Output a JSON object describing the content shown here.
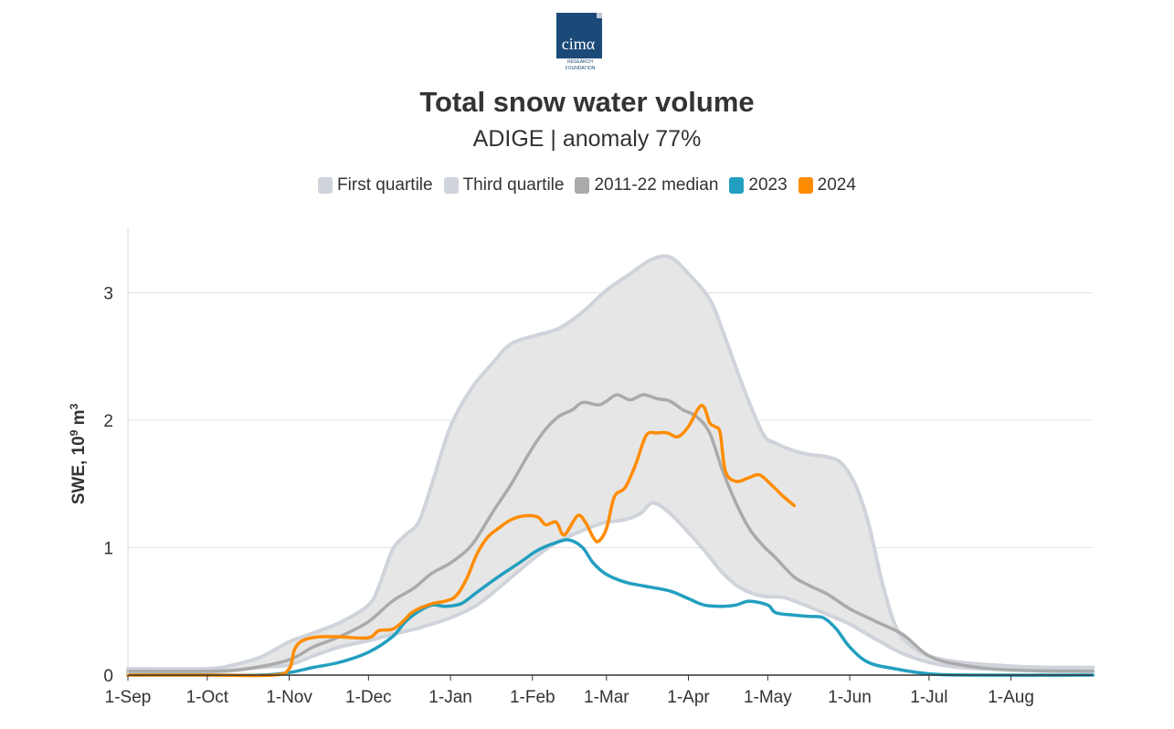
{
  "logo": {
    "text": "cimα",
    "subtext1": "RESEARCH",
    "subtext2": "FOUNDATION"
  },
  "chart_data": {
    "type": "line",
    "title": "Total snow water volume",
    "subtitle": "ADIGE | anomaly 77%",
    "ylabel": "SWE, 10",
    "ylabel_sup": "9",
    "ylabel_unit": " m",
    "ylabel_unit_sup": "3",
    "xlabel": "",
    "ylim": [
      0,
      3.5
    ],
    "xlim": [
      0,
      365
    ],
    "grid": true,
    "legend_position": "top-center",
    "yticks": [
      {
        "value": 0,
        "label": "0"
      },
      {
        "value": 1,
        "label": "1"
      },
      {
        "value": 2,
        "label": "2"
      },
      {
        "value": 3,
        "label": "3"
      }
    ],
    "xticks": [
      {
        "day": 0,
        "label": "1-Sep"
      },
      {
        "day": 30,
        "label": "1-Oct"
      },
      {
        "day": 61,
        "label": "1-Nov"
      },
      {
        "day": 91,
        "label": "1-Dec"
      },
      {
        "day": 122,
        "label": "1-Jan"
      },
      {
        "day": 153,
        "label": "1-Feb"
      },
      {
        "day": 181,
        "label": "1-Mar"
      },
      {
        "day": 212,
        "label": "1-Apr"
      },
      {
        "day": 242,
        "label": "1-May"
      },
      {
        "day": 273,
        "label": "1-Jun"
      },
      {
        "day": 303,
        "label": "1-Jul"
      },
      {
        "day": 334,
        "label": "1-Aug"
      }
    ],
    "legend": [
      {
        "label": "First quartile",
        "color": "#cfd3da"
      },
      {
        "label": "Third quartile",
        "color": "#cfd3da"
      },
      {
        "label": "2011-22 median",
        "color": "#aaaaaa"
      },
      {
        "label": "2023",
        "color": "#229fc0"
      },
      {
        "label": "2024",
        "color": "#ff8c00"
      }
    ],
    "series": [
      {
        "name": "First quartile",
        "color": "#cfd3da",
        "points": [
          [
            0,
            0.02
          ],
          [
            30,
            0.02
          ],
          [
            50,
            0.06
          ],
          [
            61,
            0.08
          ],
          [
            70,
            0.15
          ],
          [
            80,
            0.22
          ],
          [
            91,
            0.27
          ],
          [
            100,
            0.32
          ],
          [
            110,
            0.37
          ],
          [
            122,
            0.45
          ],
          [
            132,
            0.55
          ],
          [
            140,
            0.68
          ],
          [
            148,
            0.82
          ],
          [
            155,
            0.94
          ],
          [
            162,
            1.04
          ],
          [
            168,
            1.1
          ],
          [
            175,
            1.16
          ],
          [
            181,
            1.2
          ],
          [
            188,
            1.22
          ],
          [
            194,
            1.27
          ],
          [
            198,
            1.35
          ],
          [
            202,
            1.32
          ],
          [
            206,
            1.25
          ],
          [
            212,
            1.12
          ],
          [
            218,
            0.98
          ],
          [
            225,
            0.8
          ],
          [
            232,
            0.68
          ],
          [
            240,
            0.62
          ],
          [
            248,
            0.61
          ],
          [
            256,
            0.55
          ],
          [
            264,
            0.48
          ],
          [
            273,
            0.4
          ],
          [
            283,
            0.28
          ],
          [
            293,
            0.17
          ],
          [
            303,
            0.1
          ],
          [
            315,
            0.06
          ],
          [
            334,
            0.04
          ],
          [
            350,
            0.03
          ],
          [
            365,
            0.03
          ]
        ]
      },
      {
        "name": "Third quartile",
        "color": "#cfd3da",
        "points": [
          [
            0,
            0.05
          ],
          [
            30,
            0.05
          ],
          [
            40,
            0.08
          ],
          [
            50,
            0.14
          ],
          [
            61,
            0.26
          ],
          [
            70,
            0.33
          ],
          [
            80,
            0.41
          ],
          [
            91,
            0.55
          ],
          [
            95,
            0.7
          ],
          [
            100,
            0.98
          ],
          [
            105,
            1.1
          ],
          [
            110,
            1.2
          ],
          [
            115,
            1.5
          ],
          [
            122,
            1.95
          ],
          [
            130,
            2.25
          ],
          [
            138,
            2.45
          ],
          [
            145,
            2.6
          ],
          [
            155,
            2.67
          ],
          [
            163,
            2.72
          ],
          [
            172,
            2.85
          ],
          [
            181,
            3.02
          ],
          [
            190,
            3.15
          ],
          [
            198,
            3.26
          ],
          [
            205,
            3.28
          ],
          [
            212,
            3.15
          ],
          [
            220,
            2.95
          ],
          [
            225,
            2.7
          ],
          [
            232,
            2.3
          ],
          [
            240,
            1.9
          ],
          [
            245,
            1.82
          ],
          [
            252,
            1.76
          ],
          [
            258,
            1.73
          ],
          [
            265,
            1.71
          ],
          [
            270,
            1.66
          ],
          [
            275,
            1.5
          ],
          [
            280,
            1.2
          ],
          [
            285,
            0.75
          ],
          [
            290,
            0.4
          ],
          [
            295,
            0.25
          ],
          [
            303,
            0.15
          ],
          [
            315,
            0.1
          ],
          [
            334,
            0.07
          ],
          [
            350,
            0.06
          ],
          [
            365,
            0.06
          ]
        ]
      },
      {
        "name": "2011-22 median",
        "color": "#aaaaaa",
        "points": [
          [
            0,
            0.03
          ],
          [
            30,
            0.03
          ],
          [
            45,
            0.05
          ],
          [
            61,
            0.12
          ],
          [
            70,
            0.22
          ],
          [
            80,
            0.3
          ],
          [
            91,
            0.42
          ],
          [
            100,
            0.58
          ],
          [
            108,
            0.68
          ],
          [
            115,
            0.8
          ],
          [
            122,
            0.88
          ],
          [
            130,
            1.02
          ],
          [
            138,
            1.28
          ],
          [
            145,
            1.5
          ],
          [
            152,
            1.75
          ],
          [
            158,
            1.93
          ],
          [
            163,
            2.03
          ],
          [
            168,
            2.08
          ],
          [
            172,
            2.14
          ],
          [
            178,
            2.12
          ],
          [
            181,
            2.15
          ],
          [
            185,
            2.2
          ],
          [
            190,
            2.16
          ],
          [
            195,
            2.2
          ],
          [
            200,
            2.17
          ],
          [
            205,
            2.15
          ],
          [
            210,
            2.08
          ],
          [
            215,
            2.03
          ],
          [
            220,
            1.9
          ],
          [
            225,
            1.6
          ],
          [
            230,
            1.35
          ],
          [
            235,
            1.15
          ],
          [
            240,
            1.02
          ],
          [
            245,
            0.92
          ],
          [
            252,
            0.77
          ],
          [
            258,
            0.7
          ],
          [
            265,
            0.63
          ],
          [
            273,
            0.52
          ],
          [
            283,
            0.42
          ],
          [
            293,
            0.32
          ],
          [
            303,
            0.15
          ],
          [
            315,
            0.08
          ],
          [
            334,
            0.04
          ],
          [
            365,
            0.03
          ]
        ]
      },
      {
        "name": "2023",
        "color": "#229fc0",
        "points": [
          [
            0,
            0.0
          ],
          [
            30,
            0.0
          ],
          [
            50,
            0.0
          ],
          [
            61,
            0.02
          ],
          [
            70,
            0.06
          ],
          [
            80,
            0.1
          ],
          [
            91,
            0.18
          ],
          [
            100,
            0.3
          ],
          [
            105,
            0.42
          ],
          [
            110,
            0.5
          ],
          [
            115,
            0.55
          ],
          [
            120,
            0.54
          ],
          [
            126,
            0.56
          ],
          [
            132,
            0.65
          ],
          [
            140,
            0.77
          ],
          [
            148,
            0.88
          ],
          [
            155,
            0.98
          ],
          [
            162,
            1.04
          ],
          [
            167,
            1.06
          ],
          [
            172,
            1.0
          ],
          [
            176,
            0.88
          ],
          [
            181,
            0.79
          ],
          [
            188,
            0.73
          ],
          [
            195,
            0.7
          ],
          [
            205,
            0.66
          ],
          [
            212,
            0.6
          ],
          [
            218,
            0.55
          ],
          [
            225,
            0.54
          ],
          [
            230,
            0.55
          ],
          [
            235,
            0.58
          ],
          [
            242,
            0.55
          ],
          [
            245,
            0.49
          ],
          [
            252,
            0.47
          ],
          [
            258,
            0.46
          ],
          [
            263,
            0.45
          ],
          [
            268,
            0.36
          ],
          [
            273,
            0.22
          ],
          [
            280,
            0.1
          ],
          [
            290,
            0.05
          ],
          [
            303,
            0.01
          ],
          [
            320,
            0.0
          ],
          [
            365,
            0.0
          ]
        ]
      },
      {
        "name": "2024",
        "color": "#ff8c00",
        "points": [
          [
            0,
            0.0
          ],
          [
            30,
            0.0
          ],
          [
            55,
            0.0
          ],
          [
            61,
            0.05
          ],
          [
            63,
            0.2
          ],
          [
            66,
            0.27
          ],
          [
            72,
            0.3
          ],
          [
            80,
            0.3
          ],
          [
            88,
            0.29
          ],
          [
            92,
            0.3
          ],
          [
            95,
            0.35
          ],
          [
            100,
            0.36
          ],
          [
            104,
            0.42
          ],
          [
            108,
            0.5
          ],
          [
            115,
            0.56
          ],
          [
            120,
            0.58
          ],
          [
            124,
            0.62
          ],
          [
            128,
            0.75
          ],
          [
            132,
            0.95
          ],
          [
            136,
            1.08
          ],
          [
            140,
            1.15
          ],
          [
            145,
            1.22
          ],
          [
            150,
            1.25
          ],
          [
            155,
            1.24
          ],
          [
            158,
            1.18
          ],
          [
            162,
            1.2
          ],
          [
            165,
            1.1
          ],
          [
            170,
            1.25
          ],
          [
            173,
            1.2
          ],
          [
            176,
            1.08
          ],
          [
            178,
            1.05
          ],
          [
            181,
            1.15
          ],
          [
            184,
            1.4
          ],
          [
            188,
            1.47
          ],
          [
            192,
            1.65
          ],
          [
            196,
            1.88
          ],
          [
            200,
            1.9
          ],
          [
            204,
            1.9
          ],
          [
            208,
            1.87
          ],
          [
            212,
            1.95
          ],
          [
            216,
            2.1
          ],
          [
            218,
            2.1
          ],
          [
            220,
            1.98
          ],
          [
            222,
            1.95
          ],
          [
            224,
            1.9
          ],
          [
            226,
            1.6
          ],
          [
            230,
            1.52
          ],
          [
            235,
            1.55
          ],
          [
            239,
            1.57
          ],
          [
            244,
            1.48
          ],
          [
            248,
            1.4
          ],
          [
            252,
            1.33
          ]
        ]
      }
    ]
  }
}
